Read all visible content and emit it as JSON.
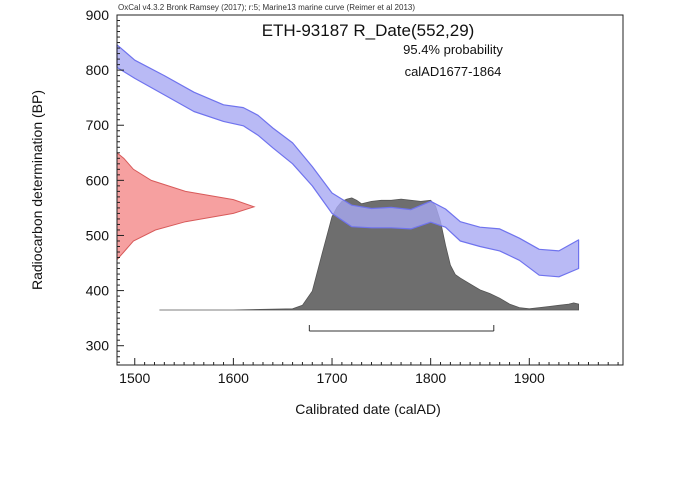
{
  "chart_data": {
    "type": "area",
    "credit": "OxCal v4.3.2 Bronk Ramsey (2017); r:5; Marine13 marine curve (Reimer et al 2013)",
    "title": "ETH-93187 R_Date(552,29)",
    "probability_text": "95.4% probability",
    "range_text": "calAD1677-1864",
    "xlabel": "Calibrated date (calAD)",
    "ylabel": "Radiocarbon determination (BP)",
    "xlim": [
      1482,
      1995
    ],
    "ylim": [
      265,
      900
    ],
    "xticks": [
      "1500",
      "1600",
      "1700",
      "1800",
      "1900"
    ],
    "yticks": [
      "300",
      "400",
      "500",
      "600",
      "700",
      "800",
      "900"
    ],
    "calibration_curve": {
      "x": [
        1482,
        1500,
        1530,
        1560,
        1590,
        1610,
        1625,
        1640,
        1660,
        1680,
        1700,
        1720,
        1740,
        1760,
        1780,
        1800,
        1815,
        1830,
        1850,
        1870,
        1890,
        1910,
        1930,
        1950
      ],
      "upper": [
        846,
        818,
        790,
        760,
        737,
        732,
        718,
        695,
        668,
        625,
        577,
        555,
        549,
        551,
        547,
        562,
        548,
        525,
        515,
        512,
        495,
        475,
        472,
        492
      ],
      "lower": [
        805,
        785,
        755,
        725,
        707,
        699,
        682,
        659,
        630,
        590,
        540,
        516,
        514,
        514,
        512,
        524,
        515,
        490,
        480,
        472,
        455,
        428,
        425,
        440
      ],
      "color": "#6f73ee",
      "fill": "#a7a9f3"
    },
    "measurement_distribution": {
      "y": [
        456,
        470,
        490,
        510,
        525,
        540,
        552,
        565,
        580,
        600,
        620,
        640,
        650
      ],
      "density": [
        0.0,
        0.05,
        0.12,
        0.28,
        0.5,
        0.85,
        1.0,
        0.85,
        0.5,
        0.25,
        0.12,
        0.05,
        0.0
      ],
      "color": "#d85a5a",
      "fill": "#f6a0a0"
    },
    "calibrated_distribution": {
      "x": [
        1525,
        1600,
        1660,
        1670,
        1680,
        1690,
        1700,
        1705,
        1710,
        1715,
        1720,
        1725,
        1730,
        1740,
        1750,
        1760,
        1770,
        1780,
        1790,
        1800,
        1805,
        1810,
        1815,
        1820,
        1825,
        1830,
        1840,
        1850,
        1860,
        1870,
        1880,
        1890,
        1900,
        1910,
        1920,
        1930,
        1940,
        1945,
        1950
      ],
      "density": [
        0.0,
        0.0,
        0.01,
        0.04,
        0.16,
        0.48,
        0.79,
        0.87,
        0.92,
        0.94,
        0.95,
        0.93,
        0.9,
        0.92,
        0.93,
        0.93,
        0.94,
        0.93,
        0.92,
        0.93,
        0.88,
        0.75,
        0.55,
        0.38,
        0.3,
        0.27,
        0.22,
        0.17,
        0.14,
        0.1,
        0.05,
        0.02,
        0.01,
        0.02,
        0.03,
        0.04,
        0.05,
        0.06,
        0.05
      ],
      "fill": "#6e6e6e"
    },
    "range_bar": {
      "from": 1677,
      "to": 1864
    }
  }
}
